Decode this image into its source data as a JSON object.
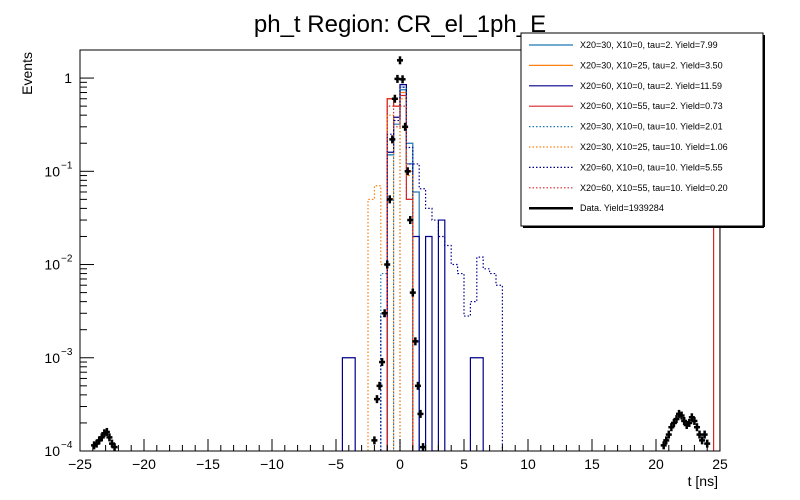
{
  "chart_data": {
    "type": "step-histogram",
    "title": "ph_t Region: CR_el_1ph_E",
    "xlabel": "t [ns]",
    "ylabel": "Events",
    "xlim": [
      -25,
      25
    ],
    "ylim": [
      0.0001,
      2
    ],
    "yscale": "log",
    "grid": false,
    "legend_position": "top-right",
    "x_ticks": [
      -25,
      -20,
      -15,
      -10,
      -5,
      0,
      5,
      10,
      15,
      20,
      25
    ],
    "y_ticks": [
      {
        "value": 0.0001,
        "base": "10",
        "exp": "−4"
      },
      {
        "value": 0.001,
        "base": "10",
        "exp": "−3"
      },
      {
        "value": 0.01,
        "base": "10",
        "exp": "−2"
      },
      {
        "value": 0.1,
        "base": "10",
        "exp": "−1"
      },
      {
        "value": 1,
        "base": "1",
        "exp": ""
      }
    ],
    "series": [
      {
        "name": "X20=30, X10=0, tau=2. Yield=7.99",
        "color": "#1f77b4",
        "style": "solid",
        "bins": [
          [
            -1,
            -0.5,
            0.15
          ],
          [
            -0.5,
            0,
            0.32
          ],
          [
            0,
            0.5,
            0.75
          ],
          [
            0.5,
            1,
            0.2
          ],
          [
            1,
            1.5,
            0.06
          ]
        ]
      },
      {
        "name": "X20=30, X10=25, tau=2. Yield=3.50",
        "color": "#ff7f0e",
        "style": "solid",
        "bins": [
          [
            -1,
            -0.5,
            0.6
          ],
          [
            -0.5,
            0,
            0.5
          ],
          [
            0,
            0.5,
            0.7
          ],
          [
            0.5,
            1,
            0.1
          ]
        ]
      },
      {
        "name": "X20=60, X10=0, tau=2. Yield=11.59",
        "color": "#00008b",
        "style": "solid",
        "bins": [
          [
            -4.5,
            -3.5,
            0.001
          ],
          [
            -1,
            -0.5,
            0.16
          ],
          [
            -0.5,
            0,
            0.38
          ],
          [
            0,
            0.5,
            0.85
          ],
          [
            0.5,
            1,
            0.12
          ],
          [
            1,
            1.5,
            0.02
          ],
          [
            1.5,
            2,
            0.0001
          ],
          [
            2,
            2.5,
            0.02
          ],
          [
            2.5,
            3,
            0.0001
          ],
          [
            3,
            3.5,
            0.03
          ],
          [
            5.5,
            6.5,
            0.001
          ]
        ]
      },
      {
        "name": "X20=60, X10=55, tau=2. Yield=0.73",
        "color": "#d62728",
        "style": "solid",
        "bins": [
          [
            -1,
            -0.5,
            0.6
          ],
          [
            -0.5,
            0,
            0.5
          ],
          [
            0,
            0.5,
            0.65
          ],
          [
            0.5,
            1,
            0.05
          ],
          [
            24.5,
            25,
            0.03
          ]
        ]
      },
      {
        "name": "X20=30, X10=0, tau=10. Yield=2.01",
        "color": "#1f77b4",
        "style": "dotted",
        "bins": [
          [
            -1.5,
            -1,
            0.008
          ],
          [
            -1,
            -0.5,
            0.15
          ],
          [
            0,
            0.5,
            0.8
          ],
          [
            0.5,
            1,
            0.12
          ]
        ]
      },
      {
        "name": "X20=30, X10=25, tau=10. Yield=1.06",
        "color": "#ff7f0e",
        "style": "dotted",
        "bins": [
          [
            -2.5,
            -2,
            0.05
          ],
          [
            -2,
            -1.5,
            0.07
          ],
          [
            -1.5,
            -1,
            0.01
          ],
          [
            -1,
            -0.5,
            0.4
          ],
          [
            0,
            0.5,
            0.6
          ],
          [
            0.5,
            1,
            0.09
          ]
        ]
      },
      {
        "name": "X20=60, X10=0, tau=10. Yield=5.55",
        "color": "#00008b",
        "style": "dotted",
        "bins": [
          [
            -2,
            -1.5,
            0.0001
          ],
          [
            -1.5,
            -1,
            0.0028
          ],
          [
            -1,
            -0.5,
            0.25
          ],
          [
            -0.5,
            0,
            0.35
          ],
          [
            0,
            0.5,
            0.8
          ],
          [
            0.5,
            1,
            0.18
          ],
          [
            1,
            1.5,
            0.12
          ],
          [
            1.5,
            2,
            0.065
          ],
          [
            2,
            2.5,
            0.04
          ],
          [
            2.5,
            3,
            0.03
          ],
          [
            3,
            3.5,
            0.02
          ],
          [
            3.5,
            4,
            0.016
          ],
          [
            4,
            4.5,
            0.01
          ],
          [
            4.5,
            5,
            0.008
          ],
          [
            5,
            5.5,
            0.0028
          ],
          [
            5.5,
            6,
            0.004
          ],
          [
            6,
            6.5,
            0.012
          ],
          [
            6.5,
            7,
            0.009
          ],
          [
            7,
            7.5,
            0.008
          ],
          [
            7.5,
            8,
            0.006
          ],
          [
            8,
            8.5,
            0.0001
          ]
        ]
      },
      {
        "name": "X20=60, X10=55, tau=10. Yield=0.20",
        "color": "#d62728",
        "style": "dotted",
        "bins": [
          [
            -1,
            -0.5,
            0.5
          ],
          [
            -0.5,
            0,
            0.3
          ],
          [
            0,
            0.5,
            0.5
          ],
          [
            0.5,
            1,
            0.05
          ]
        ]
      }
    ],
    "data_points": {
      "name": "Data. Yield=1939284",
      "color": "#000000",
      "points": [
        [
          -23.9,
          0.000115
        ],
        [
          -23.7,
          0.00012
        ],
        [
          -23.5,
          0.00013
        ],
        [
          -23.3,
          0.00014
        ],
        [
          -23.1,
          0.000155
        ],
        [
          -22.9,
          0.00016
        ],
        [
          -22.7,
          0.00014
        ],
        [
          -22.5,
          0.00012
        ],
        [
          -22.3,
          0.00011
        ],
        [
          -2.0,
          0.00013
        ],
        [
          -1.8,
          0.00036
        ],
        [
          -1.6,
          0.0005
        ],
        [
          -1.4,
          0.0009
        ],
        [
          -1.2,
          0.003
        ],
        [
          -1.0,
          0.01
        ],
        [
          -0.8,
          0.05
        ],
        [
          -0.6,
          0.22
        ],
        [
          -0.4,
          0.6
        ],
        [
          -0.2,
          0.98
        ],
        [
          0.0,
          1.55
        ],
        [
          0.2,
          0.97
        ],
        [
          0.4,
          0.3
        ],
        [
          0.6,
          0.1
        ],
        [
          0.8,
          0.03
        ],
        [
          1.0,
          0.005
        ],
        [
          1.2,
          0.0015
        ],
        [
          1.4,
          0.0005
        ],
        [
          1.6,
          0.00025
        ],
        [
          1.8,
          0.00011
        ],
        [
          20.6,
          0.000115
        ],
        [
          20.8,
          0.00013
        ],
        [
          21.0,
          0.00015
        ],
        [
          21.2,
          0.00018
        ],
        [
          21.4,
          0.0002
        ],
        [
          21.6,
          0.00022
        ],
        [
          21.8,
          0.00025
        ],
        [
          22.0,
          0.00024
        ],
        [
          22.2,
          0.00021
        ],
        [
          22.4,
          0.00019
        ],
        [
          22.6,
          0.0002
        ],
        [
          22.8,
          0.00023
        ],
        [
          23.0,
          0.00021
        ],
        [
          23.2,
          0.00018
        ],
        [
          23.4,
          0.00015
        ],
        [
          23.6,
          0.00013
        ],
        [
          23.8,
          0.00015
        ],
        [
          24.0,
          0.00012
        ]
      ]
    }
  }
}
